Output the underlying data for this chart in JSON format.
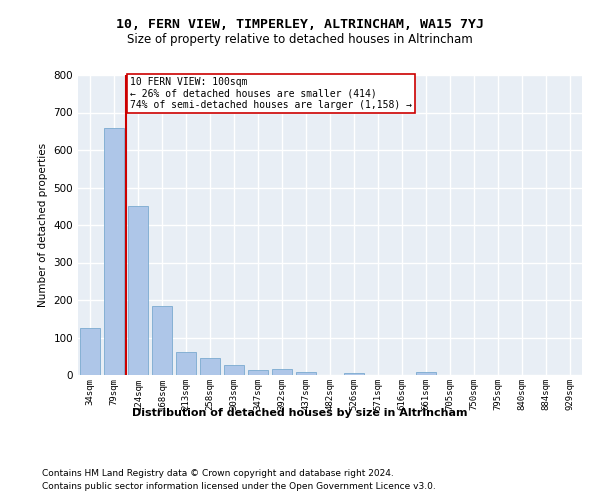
{
  "title1": "10, FERN VIEW, TIMPERLEY, ALTRINCHAM, WA15 7YJ",
  "title2": "Size of property relative to detached houses in Altrincham",
  "xlabel": "Distribution of detached houses by size in Altrincham",
  "ylabel": "Number of detached properties",
  "categories": [
    "34sqm",
    "79sqm",
    "124sqm",
    "168sqm",
    "213sqm",
    "258sqm",
    "303sqm",
    "347sqm",
    "392sqm",
    "437sqm",
    "482sqm",
    "526sqm",
    "571sqm",
    "616sqm",
    "661sqm",
    "705sqm",
    "750sqm",
    "795sqm",
    "840sqm",
    "884sqm",
    "929sqm"
  ],
  "values": [
    125,
    660,
    450,
    183,
    62,
    46,
    27,
    13,
    15,
    9,
    0,
    6,
    0,
    0,
    7,
    0,
    0,
    0,
    0,
    0,
    0
  ],
  "bar_color": "#aec6e8",
  "bar_edge_color": "#7aaad0",
  "vline_x_index": 1.5,
  "vline_color": "#cc0000",
  "annotation_text": "10 FERN VIEW: 100sqm\n← 26% of detached houses are smaller (414)\n74% of semi-detached houses are larger (1,158) →",
  "annotation_box_color": "#ffffff",
  "annotation_box_edge": "#cc0000",
  "ylim": [
    0,
    800
  ],
  "yticks": [
    0,
    100,
    200,
    300,
    400,
    500,
    600,
    700,
    800
  ],
  "background_color": "#e8eef5",
  "grid_color": "#ffffff",
  "footer1": "Contains HM Land Registry data © Crown copyright and database right 2024.",
  "footer2": "Contains public sector information licensed under the Open Government Licence v3.0."
}
